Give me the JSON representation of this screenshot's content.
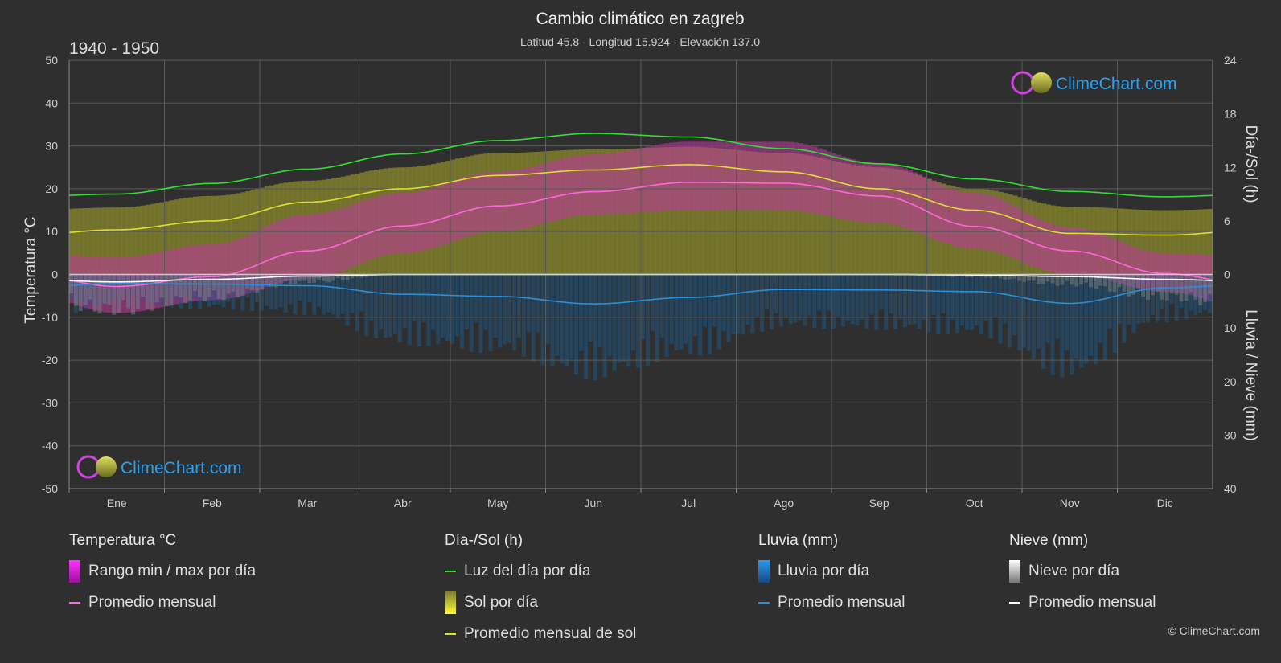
{
  "header": {
    "title": "Cambio climático en zagreb",
    "subtitle": "Latitud 45.8 - Longitud 15.924 - Elevación 137.0",
    "period": "1940 - 1950"
  },
  "brand": {
    "name": "ClimeChart.com",
    "copyright": "© ClimeChart.com"
  },
  "colors": {
    "background": "#2f2f2f",
    "daylight": "#33dd33",
    "sunshine": "#dddd33",
    "temp_avg": "#ff66dd",
    "temp_range": "#cc33bb",
    "rain": "#2a8fd8",
    "snow": "#ffffff"
  },
  "chart_data": {
    "type": "line",
    "months": [
      "Ene",
      "Feb",
      "Mar",
      "Abr",
      "May",
      "Jun",
      "Jul",
      "Ago",
      "Sep",
      "Oct",
      "Nov",
      "Dic"
    ],
    "axes": {
      "left": {
        "label": "Temperatura °C",
        "range": [
          -50,
          50
        ],
        "ticks": [
          50,
          40,
          30,
          20,
          10,
          0,
          -10,
          -20,
          -30,
          -40,
          -50
        ]
      },
      "right_top": {
        "label": "Día-/Sol (h)",
        "range": [
          0,
          24
        ],
        "ticks": [
          24,
          18,
          12,
          6,
          0
        ]
      },
      "right_bottom": {
        "label": "Lluvia / Nieve (mm)",
        "range": [
          0,
          40
        ],
        "ticks": [
          10,
          20,
          30,
          40
        ]
      }
    },
    "series": [
      {
        "name": "Luz del día por día",
        "axis": "right_top",
        "values": [
          9.0,
          10.2,
          11.8,
          13.5,
          15.0,
          15.8,
          15.4,
          14.1,
          12.4,
          10.7,
          9.3,
          8.7
        ]
      },
      {
        "name": "Promedio mensual de sol",
        "axis": "right_top",
        "values": [
          5.0,
          6.0,
          8.1,
          9.6,
          11.1,
          11.7,
          12.3,
          11.5,
          9.6,
          7.2,
          4.6,
          4.4
        ]
      },
      {
        "name": "Promedio mensual",
        "kind": "temperature",
        "axis": "left",
        "values": [
          -2.8,
          -0.5,
          5.5,
          11.3,
          16.0,
          19.3,
          21.5,
          21.3,
          18.3,
          11.2,
          5.5,
          0.2
        ]
      },
      {
        "name": "Promedio mensual",
        "kind": "rain",
        "axis": "right_bottom",
        "values": [
          1.7,
          1.8,
          2.1,
          3.7,
          4.1,
          5.5,
          4.3,
          2.8,
          2.9,
          3.2,
          5.4,
          2.5
        ]
      },
      {
        "name": "Promedio mensual",
        "kind": "snow",
        "axis": "right_bottom",
        "values": [
          1.4,
          0.9,
          0.3,
          0.0,
          0.0,
          0.0,
          0.0,
          0.0,
          0.0,
          0.1,
          0.4,
          0.9
        ]
      }
    ],
    "temperature_range_daily": {
      "min": [
        -9,
        -6,
        -1,
        5,
        10,
        14,
        15,
        15,
        12,
        6,
        0,
        -4
      ],
      "max": [
        4,
        7,
        14,
        19,
        24,
        28,
        31,
        31,
        26,
        19,
        11,
        5
      ]
    },
    "sunshine_daily_max": [
      7.5,
      8.8,
      10.5,
      12.0,
      13.6,
      14.0,
      14.3,
      13.6,
      12.0,
      9.6,
      7.6,
      7.2
    ],
    "grid": true
  },
  "legend": {
    "groups": [
      {
        "title": "Temperatura °C",
        "items": [
          {
            "label": "Rango min / max por día",
            "swatch": "temp-range"
          },
          {
            "label": "Promedio mensual",
            "swatch": "temp-avg"
          }
        ]
      },
      {
        "title": "Día-/Sol (h)",
        "items": [
          {
            "label": "Luz del día por día",
            "swatch": "daylight"
          },
          {
            "label": "Sol por día",
            "swatch": "sunshine"
          },
          {
            "label": "Promedio mensual de sol",
            "swatch": "sunshine-avg"
          }
        ]
      },
      {
        "title": "Lluvia (mm)",
        "items": [
          {
            "label": "Lluvia por día",
            "swatch": "rain"
          },
          {
            "label": "Promedio mensual",
            "swatch": "rain-avg"
          }
        ]
      },
      {
        "title": "Nieve (mm)",
        "items": [
          {
            "label": "Nieve por día",
            "swatch": "snow"
          },
          {
            "label": "Promedio mensual",
            "swatch": "snow-avg"
          }
        ]
      }
    ]
  }
}
